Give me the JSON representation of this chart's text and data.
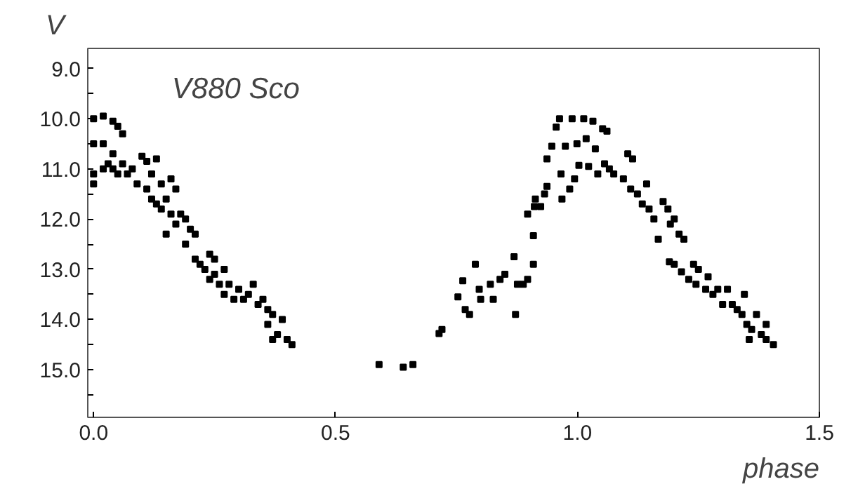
{
  "chart_data": {
    "type": "scatter",
    "xlabel": "phase",
    "ylabel": "V",
    "annotations": [
      "V880 Sco"
    ],
    "xlim": [
      -0.012,
      1.5
    ],
    "ylim": [
      15.95,
      8.6
    ],
    "xticks": [
      {
        "value": 0.0,
        "label": "0.0"
      },
      0.5,
      {
        "value": 1.0,
        "label": "1.0"
      },
      1.5
    ],
    "yticks": [
      {
        "value": 9.0,
        "label": "9.0"
      },
      {
        "value": 9.5,
        "label": null
      },
      {
        "value": 10.0,
        "label": "10.0"
      },
      {
        "value": 10.5,
        "label": null
      },
      {
        "value": 11.0,
        "label": "11.0"
      },
      {
        "value": 11.5,
        "label": null
      },
      {
        "value": 12.0,
        "label": "12.0"
      },
      {
        "value": 12.5,
        "label": null
      },
      {
        "value": 13.0,
        "label": "13.0"
      },
      {
        "value": 13.5,
        "label": null
      },
      {
        "value": 14.0,
        "label": "14.0"
      },
      {
        "value": 14.5,
        "label": null
      },
      {
        "value": 15.0,
        "label": "15.0"
      },
      {
        "value": 15.5,
        "label": null
      }
    ],
    "grid": false,
    "marker": "square",
    "series": [
      {
        "color": "#000000",
        "x": [
          0.0,
          0.02,
          0.04,
          0.05,
          0.06,
          0.0,
          0.02,
          0.04,
          0.06,
          0.08,
          0.1,
          0.11,
          0.12,
          0.14,
          0.13,
          0.16,
          0.17,
          0.0,
          0.0,
          0.02,
          0.03,
          0.04,
          0.05,
          0.07,
          0.09,
          0.11,
          0.12,
          0.13,
          0.14,
          0.15,
          0.16,
          0.17,
          0.15,
          0.18,
          0.19,
          0.2,
          0.21,
          0.19,
          0.21,
          0.22,
          0.23,
          0.24,
          0.25,
          0.24,
          0.25,
          0.26,
          0.27,
          0.27,
          0.28,
          0.29,
          0.3,
          0.31,
          0.32,
          0.33,
          0.34,
          0.35,
          0.36,
          0.36,
          0.37,
          0.37,
          0.38,
          0.39,
          0.4,
          0.41,
          0.59,
          0.64,
          0.66,
          0.714,
          0.72,
          0.753,
          0.763,
          0.768,
          0.777,
          0.789,
          0.797,
          0.8,
          0.82,
          0.826,
          0.84,
          0.85,
          0.869,
          0.872,
          0.876,
          0.888,
          0.897,
          0.909,
          0.909,
          0.897,
          0.911,
          0.913,
          0.924,
          0.932,
          0.937,
          0.937,
          0.947,
          0.956,
          0.963,
          0.966,
          0.968,
          0.975,
          0.984,
          0.989,
          0.994,
          0.999,
          1.003,
          1.013,
          1.018,
          1.023,
          1.032,
          1.037,
          1.042,
          1.052,
          1.061,
          1.056,
          1.066,
          1.075,
          1.095,
          1.104,
          1.114,
          1.11,
          1.124,
          1.134,
          1.143,
          1.148,
          1.158,
          1.167,
          1.177,
          1.187,
          1.192,
          1.2,
          1.21,
          1.22,
          1.19,
          1.2,
          1.215,
          1.23,
          1.24,
          1.245,
          1.25,
          1.265,
          1.27,
          1.28,
          1.29,
          1.3,
          1.31,
          1.32,
          1.33,
          1.34,
          1.345,
          1.35,
          1.355,
          1.36,
          1.37,
          1.38,
          1.39,
          1.39,
          1.405
        ],
        "values": [
          10.0,
          9.95,
          10.05,
          10.15,
          10.3,
          10.5,
          10.5,
          10.7,
          10.9,
          11.0,
          10.75,
          10.85,
          11.1,
          11.3,
          10.8,
          11.2,
          11.4,
          11.1,
          11.3,
          11.0,
          10.9,
          11.0,
          11.1,
          11.1,
          11.3,
          11.4,
          11.6,
          11.7,
          11.8,
          11.6,
          11.9,
          12.1,
          12.3,
          11.9,
          12.0,
          12.2,
          12.3,
          12.5,
          12.8,
          12.9,
          13.0,
          12.7,
          12.8,
          13.2,
          13.1,
          13.3,
          13.0,
          13.5,
          13.3,
          13.6,
          13.4,
          13.6,
          13.5,
          13.3,
          13.7,
          13.6,
          13.8,
          14.1,
          14.4,
          13.9,
          14.3,
          14.0,
          14.4,
          14.5,
          14.9,
          14.95,
          14.9,
          14.28,
          14.2,
          13.55,
          13.23,
          13.8,
          13.9,
          12.9,
          13.4,
          13.6,
          13.3,
          13.6,
          13.2,
          13.1,
          12.75,
          13.9,
          13.3,
          13.3,
          13.2,
          12.9,
          12.33,
          11.9,
          11.75,
          11.6,
          11.75,
          11.5,
          11.35,
          10.8,
          10.55,
          10.17,
          10.0,
          11.1,
          11.6,
          10.55,
          11.4,
          10.0,
          11.2,
          10.5,
          10.93,
          10.0,
          10.4,
          10.95,
          10.05,
          10.6,
          11.1,
          10.2,
          10.25,
          10.9,
          11.0,
          11.1,
          11.2,
          10.7,
          10.8,
          11.4,
          11.5,
          11.7,
          11.3,
          11.8,
          12.0,
          12.4,
          11.65,
          11.8,
          12.1,
          12.0,
          12.3,
          12.4,
          12.85,
          12.9,
          13.05,
          13.2,
          12.9,
          13.3,
          13.0,
          13.4,
          13.15,
          13.5,
          13.4,
          13.7,
          13.4,
          13.7,
          13.8,
          13.9,
          13.5,
          14.1,
          14.4,
          14.2,
          13.9,
          14.3,
          14.1,
          14.4,
          14.5
        ]
      }
    ]
  }
}
